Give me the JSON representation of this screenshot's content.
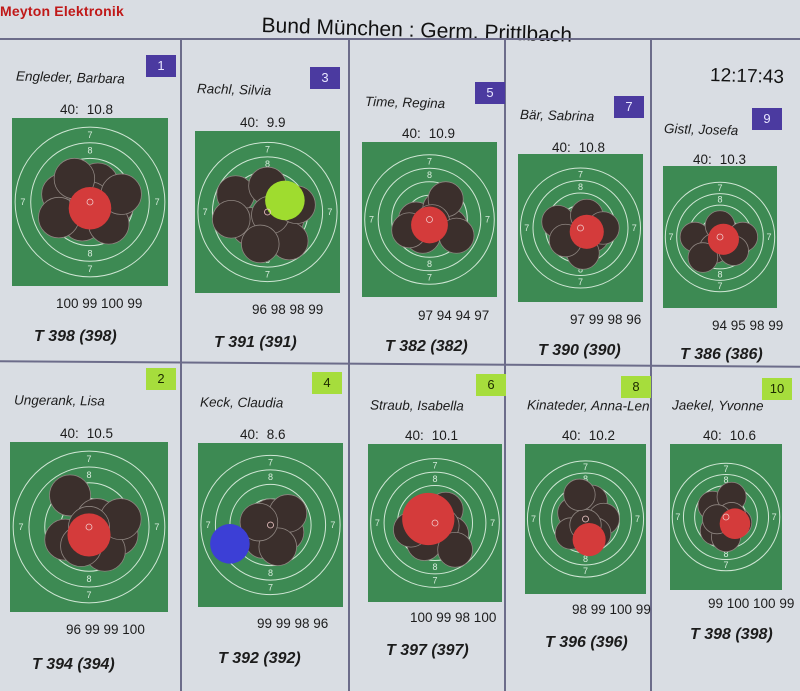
{
  "app": {
    "brand": "Meyton Elektronik",
    "title": "Bund München : Germ. Prittlbach",
    "clock": "12:17:43"
  },
  "colors": {
    "target_green": "#3d8a53",
    "hit_dark": "#3b2f2c",
    "last_shot_red": "#d43b3b",
    "badge_odd": "#4b3aa0",
    "badge_even": "#a6dd3c"
  },
  "shooters": [
    {
      "lane": "1",
      "name": "Engleder, Barbara",
      "shot_label": "40:",
      "shot_value": "10.8",
      "series": "100 99 100 99",
      "total": "T 398 (398)",
      "marker": "red"
    },
    {
      "lane": "3",
      "name": "Rachl, Silvia",
      "shot_label": "40:",
      "shot_value": "9.9",
      "series": "96 98 98 99",
      "total": "T 391 (391)",
      "marker": "lime"
    },
    {
      "lane": "5",
      "name": "Time, Regina",
      "shot_label": "40:",
      "shot_value": "10.9",
      "series": "97 94 94 97",
      "total": "T 382 (382)",
      "marker": "red"
    },
    {
      "lane": "7",
      "name": "Bär, Sabrina",
      "shot_label": "40:",
      "shot_value": "10.8",
      "series": "97 99 98 96",
      "total": "T 390 (390)",
      "marker": "red"
    },
    {
      "lane": "9",
      "name": "Gistl, Josefa",
      "shot_label": "40:",
      "shot_value": "10.3",
      "series": "94 95 98 99",
      "total": "T 386 (386)",
      "marker": "red"
    },
    {
      "lane": "2",
      "name": "Ungerank, Lisa",
      "shot_label": "40:",
      "shot_value": "10.5",
      "series": "96 99 99 100",
      "total": "T 394 (394)",
      "marker": "red"
    },
    {
      "lane": "4",
      "name": "Keck, Claudia",
      "shot_label": "40:",
      "shot_value": "8.6",
      "series": "99 99 98 96",
      "total": "T 392 (392)",
      "marker": "blue"
    },
    {
      "lane": "6",
      "name": "Straub, Isabella",
      "shot_label": "40:",
      "shot_value": "10.1",
      "series": "100 99 98 100",
      "total": "T 397 (397)",
      "marker": "red"
    },
    {
      "lane": "8",
      "name": "Kinateder, Anna-Len",
      "shot_label": "40:",
      "shot_value": "10.2",
      "series": "98 99 100 99",
      "total": "T 396 (396)",
      "marker": "red"
    },
    {
      "lane": "10",
      "name": "Jaekel, Yvonne",
      "shot_label": "40:",
      "shot_value": "10.6",
      "series": "99 100 100 99",
      "total": "T 398 (398)",
      "marker": "red"
    }
  ]
}
